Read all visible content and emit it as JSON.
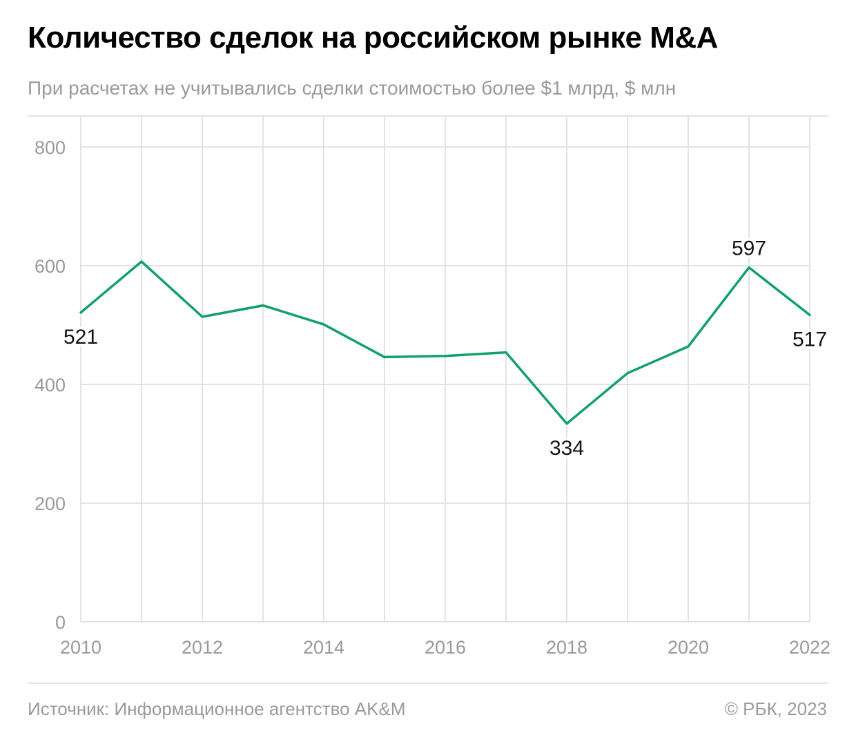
{
  "header": {
    "title": "Количество сделок на российском рынке M&A",
    "subtitle": "При расчетах не учитывались сделки стоимостью более $1 млрд, $ млн"
  },
  "footer": {
    "source": "Источник: Информационное агентство AK&M",
    "copyright": "© РБК, 2023"
  },
  "colors": {
    "line": "#10a167",
    "grid": "#e3e3e3",
    "axis_text": "#9a9a9a",
    "label_text": "#111111"
  },
  "chart_data": {
    "type": "line",
    "title": "Количество сделок на российском рынке M&A",
    "subtitle": "При расчетах не учитывались сделки стоимостью более $1 млрд, $ млн",
    "xlabel": "",
    "ylabel": "",
    "x": [
      2010,
      2011,
      2012,
      2013,
      2014,
      2015,
      2016,
      2017,
      2018,
      2019,
      2020,
      2021,
      2022
    ],
    "x_ticks": [
      "2010",
      "2012",
      "2014",
      "2016",
      "2018",
      "2020",
      "2022"
    ],
    "y_ticks": [
      0,
      200,
      400,
      600,
      800
    ],
    "ylim": [
      0,
      800
    ],
    "xlim": [
      2010,
      2022
    ],
    "grid": true,
    "legend": "none",
    "series": [
      {
        "values": [
          521,
          607,
          514,
          533,
          501,
          446,
          448,
          454,
          334,
          419,
          464,
          597,
          517
        ]
      }
    ],
    "data_labels": [
      {
        "x": 2010,
        "value": 521,
        "text": "521",
        "position": "below"
      },
      {
        "x": 2018,
        "value": 334,
        "text": "334",
        "position": "below"
      },
      {
        "x": 2021,
        "value": 597,
        "text": "597",
        "position": "above"
      },
      {
        "x": 2022,
        "value": 517,
        "text": "517",
        "position": "below"
      }
    ]
  }
}
